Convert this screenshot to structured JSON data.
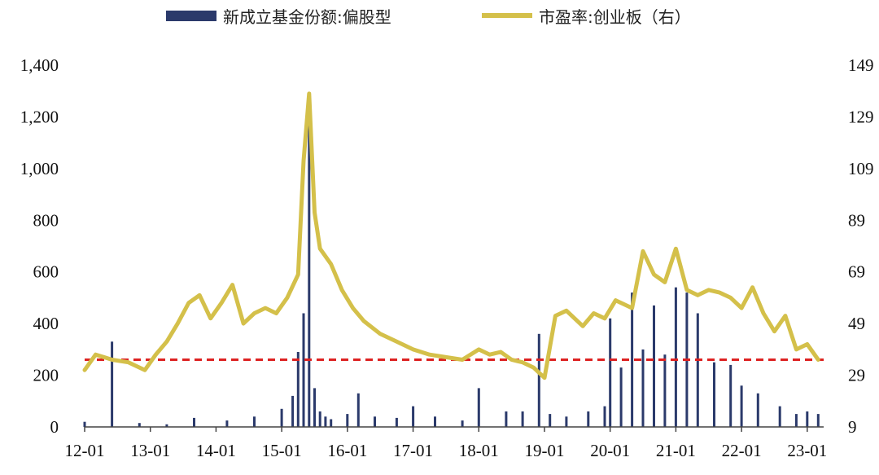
{
  "colors": {
    "bar": "#2b3a6b",
    "line": "#d4c04a",
    "reference_line": "#dd2222",
    "axis": "#444444",
    "background": "#ffffff"
  },
  "chart_data": {
    "type": "bar",
    "title": "",
    "xlabel": "",
    "ylabel": "",
    "y2label": "",
    "grid": false,
    "legend_position": "top",
    "x_ticks": [
      "12-01",
      "13-01",
      "14-01",
      "15-01",
      "16-01",
      "17-01",
      "18-01",
      "19-01",
      "20-01",
      "21-01",
      "22-01",
      "23-01"
    ],
    "y_left_ticks": [
      "0",
      "200",
      "400",
      "600",
      "800",
      "1,000",
      "1,200",
      "1,400"
    ],
    "y_right_ticks": [
      "9",
      "29",
      "49",
      "69",
      "89",
      "109",
      "129",
      "149"
    ],
    "y_left_range": [
      0,
      1400
    ],
    "y_right_range": [
      9,
      149
    ],
    "series": [
      {
        "name": "新成立基金份额:偏股型",
        "type": "bar",
        "axis": "left",
        "x": [
          "2012-01",
          "2012-06",
          "2012-11",
          "2013-04",
          "2013-09",
          "2014-03",
          "2014-08",
          "2015-01",
          "2015-03",
          "2015-04",
          "2015-05",
          "2015-06",
          "2015-07",
          "2015-08",
          "2015-09",
          "2015-10",
          "2016-01",
          "2016-03",
          "2016-06",
          "2016-10",
          "2017-01",
          "2017-05",
          "2017-10",
          "2018-01",
          "2018-06",
          "2018-09",
          "2018-12",
          "2019-02",
          "2019-05",
          "2019-09",
          "2019-12",
          "2020-01",
          "2020-03",
          "2020-05",
          "2020-07",
          "2020-09",
          "2020-11",
          "2021-01",
          "2021-03",
          "2021-05",
          "2021-08",
          "2021-11",
          "2022-01",
          "2022-04",
          "2022-08",
          "2022-11",
          "2023-01",
          "2023-03"
        ],
        "values": [
          20,
          330,
          15,
          10,
          35,
          25,
          40,
          70,
          120,
          290,
          440,
          1220,
          150,
          60,
          40,
          30,
          50,
          130,
          40,
          35,
          80,
          40,
          25,
          150,
          60,
          60,
          360,
          50,
          40,
          60,
          80,
          420,
          230,
          520,
          300,
          470,
          280,
          540,
          520,
          440,
          250,
          240,
          160,
          130,
          80,
          50,
          60,
          50
        ]
      },
      {
        "name": "市盈率:创业板（右）",
        "type": "line",
        "axis": "right",
        "x": [
          "2012-01",
          "2012-03",
          "2012-06",
          "2012-09",
          "2012-12",
          "2013-02",
          "2013-04",
          "2013-06",
          "2013-08",
          "2013-10",
          "2013-12",
          "2014-02",
          "2014-04",
          "2014-06",
          "2014-08",
          "2014-10",
          "2014-12",
          "2015-02",
          "2015-04",
          "2015-05",
          "2015-06",
          "2015-07",
          "2015-08",
          "2015-10",
          "2015-12",
          "2016-02",
          "2016-04",
          "2016-07",
          "2016-10",
          "2017-01",
          "2017-04",
          "2017-07",
          "2017-10",
          "2018-01",
          "2018-03",
          "2018-05",
          "2018-07",
          "2018-09",
          "2018-11",
          "2019-01",
          "2019-03",
          "2019-05",
          "2019-08",
          "2019-10",
          "2019-12",
          "2020-02",
          "2020-05",
          "2020-07",
          "2020-09",
          "2020-11",
          "2021-01",
          "2021-03",
          "2021-05",
          "2021-07",
          "2021-09",
          "2021-11",
          "2022-01",
          "2022-03",
          "2022-05",
          "2022-07",
          "2022-09",
          "2022-11",
          "2023-01",
          "2023-03"
        ],
        "values": [
          31,
          37,
          35,
          34,
          31,
          37,
          42,
          49,
          57,
          60,
          51,
          57,
          64,
          49,
          53,
          55,
          53,
          59,
          68,
          112,
          138,
          92,
          78,
          72,
          62,
          55,
          50,
          45,
          42,
          39,
          37,
          36,
          35,
          39,
          37,
          38,
          35,
          34,
          32,
          28,
          52,
          54,
          48,
          53,
          51,
          58,
          55,
          77,
          68,
          65,
          78,
          62,
          60,
          62,
          61,
          59,
          55,
          63,
          53,
          46,
          52,
          39,
          41,
          35
        ]
      },
      {
        "name": "",
        "type": "reference_line",
        "axis": "right",
        "value": 35
      }
    ]
  }
}
